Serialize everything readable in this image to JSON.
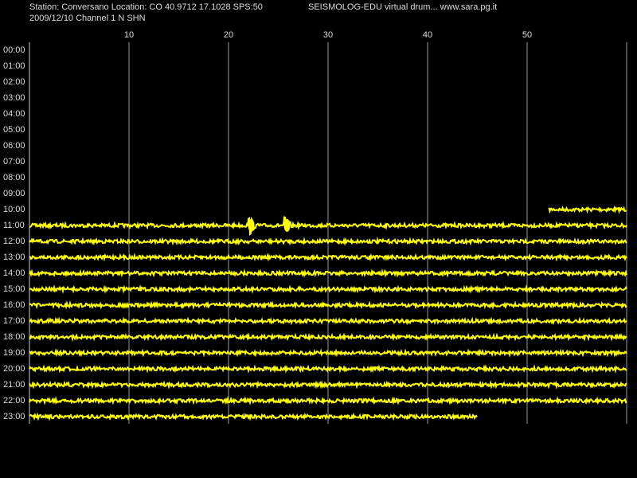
{
  "header": {
    "station": "Station: Conversano Location: CO 40.9712 17.1028 SPS:50",
    "program": "SEISMOLOG-EDU virtual drum... www.sara.pg.it",
    "date_channel": "2009/12/10  Channel 1 N SHN"
  },
  "chart_data": {
    "type": "drum",
    "color": "#ffff00",
    "grid": true,
    "xlim": [
      0,
      60
    ],
    "xticks": [
      10,
      20,
      30,
      40,
      50
    ],
    "categories": [
      "00:00",
      "01:00",
      "02:00",
      "03:00",
      "04:00",
      "05:00",
      "06:00",
      "07:00",
      "08:00",
      "09:00",
      "10:00",
      "11:00",
      "12:00",
      "13:00",
      "14:00",
      "15:00",
      "16:00",
      "17:00",
      "18:00",
      "19:00",
      "20:00",
      "21:00",
      "22:00",
      "23:00"
    ],
    "spans": [
      null,
      null,
      null,
      null,
      null,
      null,
      null,
      null,
      null,
      null,
      [
        52.2,
        60
      ],
      [
        0,
        60
      ],
      [
        0,
        60
      ],
      [
        0,
        60
      ],
      [
        0,
        60
      ],
      [
        0,
        60
      ],
      [
        0,
        60
      ],
      [
        0,
        60
      ],
      [
        0,
        60
      ],
      [
        0,
        60
      ],
      [
        0,
        60
      ],
      [
        0,
        60
      ],
      [
        0,
        60
      ],
      [
        0,
        45
      ]
    ],
    "events": [
      null,
      null,
      null,
      null,
      null,
      null,
      null,
      null,
      null,
      null,
      null,
      [
        22.2,
        25.8
      ],
      null,
      null,
      null,
      null,
      null,
      null,
      null,
      null,
      null,
      null,
      null,
      null
    ]
  }
}
